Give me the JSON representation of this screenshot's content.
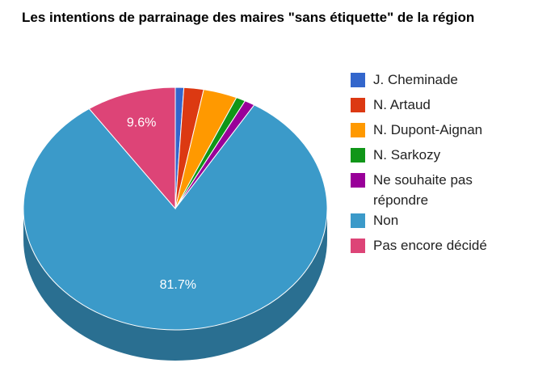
{
  "chart_data": {
    "type": "pie",
    "title": "Les intentions de parrainage des maires \"sans étiquette\" de la région",
    "legend_position": "right",
    "three_d": true,
    "start_direction": "top",
    "slices": [
      {
        "name": "J. Cheminade",
        "value": 0.9,
        "color": "#3366cc",
        "label": ""
      },
      {
        "name": "N. Artaud",
        "value": 2.1,
        "color": "#dc3912",
        "label": ""
      },
      {
        "name": "N. Dupont-Aignan",
        "value": 3.6,
        "color": "#ff9900",
        "label": ""
      },
      {
        "name": "N. Sarkozy",
        "value": 1.0,
        "color": "#109618",
        "label": ""
      },
      {
        "name": "Ne souhaite pas répondre",
        "value": 1.1,
        "color": "#990099",
        "label": ""
      },
      {
        "name": "Non",
        "value": 81.7,
        "color": "#3b9ac9",
        "label": "81.7%"
      },
      {
        "name": "Pas encore décidé",
        "value": 9.6,
        "color": "#dd4477",
        "label": "9.6%"
      }
    ]
  }
}
